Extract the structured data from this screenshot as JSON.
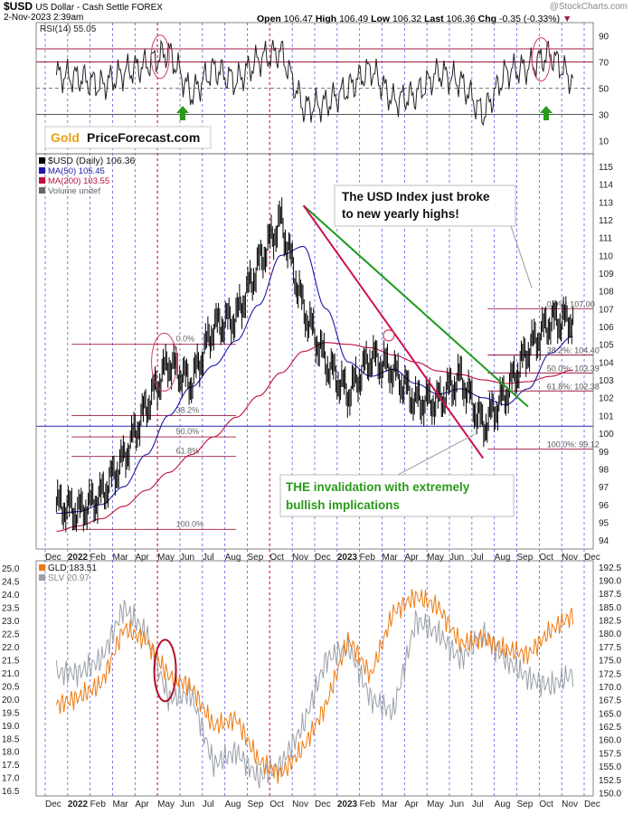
{
  "header": {
    "symbol": "$USD",
    "name": "US Dollar - Cash Settle FOREX",
    "date": "2-Nov-2023 2:39am",
    "ohlc": {
      "open": "106.47",
      "high": "106.49",
      "low": "106.32",
      "last": "106.36",
      "chg": "-0.35 (-0.33%)"
    },
    "labels": {
      "open": "Open",
      "high": "High",
      "low": "Low",
      "last": "Last",
      "chg": "Chg"
    },
    "watermark": "@StockCharts.com"
  },
  "logo": {
    "gold": "Gold",
    "rest": "PriceForecast.com"
  },
  "x_axis": {
    "ticks": [
      "Dec",
      "2022",
      "Feb",
      "Mar",
      "Apr",
      "May",
      "Jun",
      "Jul",
      "Aug",
      "Sep",
      "Oct",
      "Nov",
      "Dec",
      "2023",
      "Feb",
      "Mar",
      "Apr",
      "May",
      "Jun",
      "Jul",
      "Aug",
      "Sep",
      "Oct",
      "Nov",
      "Dec"
    ],
    "bold": [
      "2022",
      "2023"
    ]
  },
  "annotations": {
    "yearly_highs": [
      "The USD Index just broke",
      "to new yearly highs!"
    ],
    "invalidation": [
      "THE invalidation with extremely",
      "bullish implications"
    ]
  },
  "colors": {
    "price": "#000000",
    "ma50": "#1a1aa8",
    "ma200": "#c0103a",
    "green_trend": "#1e9a1e",
    "red_trend": "#d01050",
    "fib": "#a01c3c",
    "gld": "#f07a10",
    "slv": "#9aa0a8",
    "rsi": "#222222",
    "grid_blue": "#2828d8",
    "grid_red": "#c02040",
    "ellipse": "#d04060"
  },
  "chart_data": [
    {
      "type": "line",
      "title": "RSI(14) 55.05",
      "ylim": [
        0,
        100
      ],
      "y_ticks": [
        10,
        30,
        50,
        70,
        90
      ],
      "reference_lines": [
        30,
        50,
        70,
        80
      ],
      "x": [
        "Dec 2021",
        "Jan 2022",
        "Feb 2022",
        "Mar 2022",
        "Apr 2022",
        "May 2022",
        "Jun 2022",
        "Jul 2022",
        "Aug 2022",
        "Sep 2022",
        "Oct 2022",
        "Nov 2022",
        "Dec 2022",
        "Jan 2023",
        "Feb 2023",
        "Mar 2023",
        "Apr 2023",
        "May 2023",
        "Jun 2023",
        "Jul 2023",
        "Aug 2023",
        "Sep 2023",
        "Oct 2023",
        "Nov 2023"
      ],
      "series": [
        {
          "name": "RSI(14) 55.05",
          "values": [
            60,
            58,
            52,
            62,
            68,
            78,
            45,
            65,
            55,
            72,
            78,
            35,
            38,
            50,
            65,
            40,
            45,
            62,
            55,
            30,
            62,
            66,
            76,
            55
          ]
        }
      ]
    },
    {
      "type": "line",
      "title": "$USD (Daily) 106.36",
      "legend": [
        "$USD (Daily) 106.36",
        "MA(50) 105.45",
        "MA(200) 103.55",
        "Volume undef"
      ],
      "ylim": [
        94,
        115
      ],
      "y_ticks": [
        94,
        95,
        96,
        97,
        98,
        99,
        100,
        101,
        102,
        103,
        104,
        105,
        106,
        107,
        108,
        109,
        110,
        111,
        112,
        113,
        114,
        115
      ],
      "x": [
        "Dec 2021",
        "Jan 2022",
        "Feb 2022",
        "Mar 2022",
        "Apr 2022",
        "May 2022",
        "Jun 2022",
        "Jul 2022",
        "Aug 2022",
        "Sep 2022",
        "Oct 2022",
        "Nov 2022",
        "Dec 2022",
        "Jan 2023",
        "Feb 2023",
        "Mar 2023",
        "Apr 2023",
        "May 2023",
        "Jun 2023",
        "Jul 2023",
        "Aug 2023",
        "Sep 2023",
        "Oct 2023",
        "Nov 2023"
      ],
      "series": [
        {
          "name": "$USD (Daily) 106.36",
          "values": [
            96.0,
            95.6,
            96.5,
            98.6,
            101.5,
            104.0,
            102.8,
            106.0,
            106.5,
            109.5,
            112.0,
            107.0,
            104.0,
            102.2,
            104.3,
            103.5,
            101.8,
            101.8,
            103.2,
            100.4,
            102.2,
            104.7,
            106.3,
            106.4
          ]
        },
        {
          "name": "MA(50) 105.45",
          "values": [
            95.5,
            95.6,
            96.0,
            97.0,
            98.8,
            101.0,
            102.6,
            103.8,
            105.2,
            107.2,
            110.0,
            110.5,
            107.0,
            104.0,
            103.2,
            103.6,
            102.8,
            102.2,
            102.5,
            102.0,
            101.6,
            102.5,
            104.5,
            105.45
          ]
        },
        {
          "name": "MA(200) 103.55",
          "values": [
            94.5,
            94.8,
            95.2,
            95.9,
            96.8,
            97.8,
            98.8,
            99.8,
            100.9,
            102.1,
            103.4,
            104.6,
            105.1,
            105.0,
            104.8,
            104.4,
            104.0,
            103.5,
            103.3,
            103.0,
            102.8,
            102.9,
            103.2,
            103.55
          ]
        }
      ],
      "trend_lines": [
        {
          "name": "green downtrend",
          "from": [
            "Nov 2022",
            112.8
          ],
          "to": [
            "Sep 2023",
            101.5
          ]
        },
        {
          "name": "red downtrend",
          "from": [
            "Nov 2022",
            112.8
          ],
          "to": [
            "Jul 2023",
            98.6
          ]
        }
      ],
      "horizontal_line": 100.4,
      "fib_levels": [
        {
          "label": "0.0%: 107.00",
          "value": 107.0
        },
        {
          "label": "38.2%: 104.40",
          "value": 104.4
        },
        {
          "label": "50.0%: 103.39",
          "value": 103.39
        },
        {
          "label": "61.8%: 102.38",
          "value": 102.38
        },
        {
          "label": "100.0%: 99.12",
          "value": 99.12
        }
      ],
      "fib_levels_2022": [
        {
          "label": "0.0%",
          "value": 105.0
        },
        {
          "label": "38.2%",
          "value": 101.0
        },
        {
          "label": "50.0%",
          "value": 99.8
        },
        {
          "label": "61.8%",
          "value": 98.7
        },
        {
          "label": "100.0%",
          "value": 94.6
        }
      ]
    },
    {
      "type": "line",
      "title": "GLD 183.51",
      "legend": [
        "GLD 183.51",
        "SLV 20.97"
      ],
      "y_left_ticks": [
        16.5,
        17.0,
        17.5,
        18.0,
        18.5,
        19.0,
        19.5,
        20.0,
        20.5,
        21.0,
        21.5,
        22.0,
        22.5,
        23.0,
        23.5,
        24.0,
        24.5,
        25.0
      ],
      "y_right_ticks": [
        150.0,
        152.5,
        155.0,
        157.5,
        160.0,
        162.5,
        165.0,
        167.5,
        170.0,
        172.5,
        175.0,
        177.5,
        180.0,
        182.5,
        185.0,
        187.5,
        190.0,
        192.5
      ],
      "x": [
        "Dec 2021",
        "Jan 2022",
        "Feb 2022",
        "Mar 2022",
        "Apr 2022",
        "May 2022",
        "Jun 2022",
        "Jul 2022",
        "Aug 2022",
        "Sep 2022",
        "Oct 2022",
        "Nov 2022",
        "Dec 2022",
        "Jan 2023",
        "Feb 2023",
        "Mar 2023",
        "Apr 2023",
        "May 2023",
        "Jun 2023",
        "Jul 2023",
        "Aug 2023",
        "Sep 2023",
        "Oct 2023",
        "Nov 2023"
      ],
      "series": [
        {
          "name": "GLD 183.51",
          "axis": "right",
          "values": [
            166.5,
            168.0,
            170.5,
            181.0,
            178.5,
            172.0,
            170.0,
            162.5,
            164.0,
            156.0,
            153.5,
            158.5,
            166.5,
            179.0,
            172.0,
            184.0,
            187.0,
            185.0,
            178.0,
            179.0,
            177.0,
            176.0,
            180.5,
            183.51
          ]
        },
        {
          "name": "SLV 20.97",
          "axis": "left",
          "values": [
            21.0,
            21.0,
            21.5,
            23.5,
            22.5,
            20.0,
            20.2,
            17.5,
            18.0,
            17.0,
            17.5,
            19.0,
            21.5,
            22.0,
            20.0,
            19.5,
            23.0,
            22.5,
            21.5,
            22.5,
            21.5,
            20.8,
            20.5,
            20.97
          ]
        }
      ]
    }
  ]
}
